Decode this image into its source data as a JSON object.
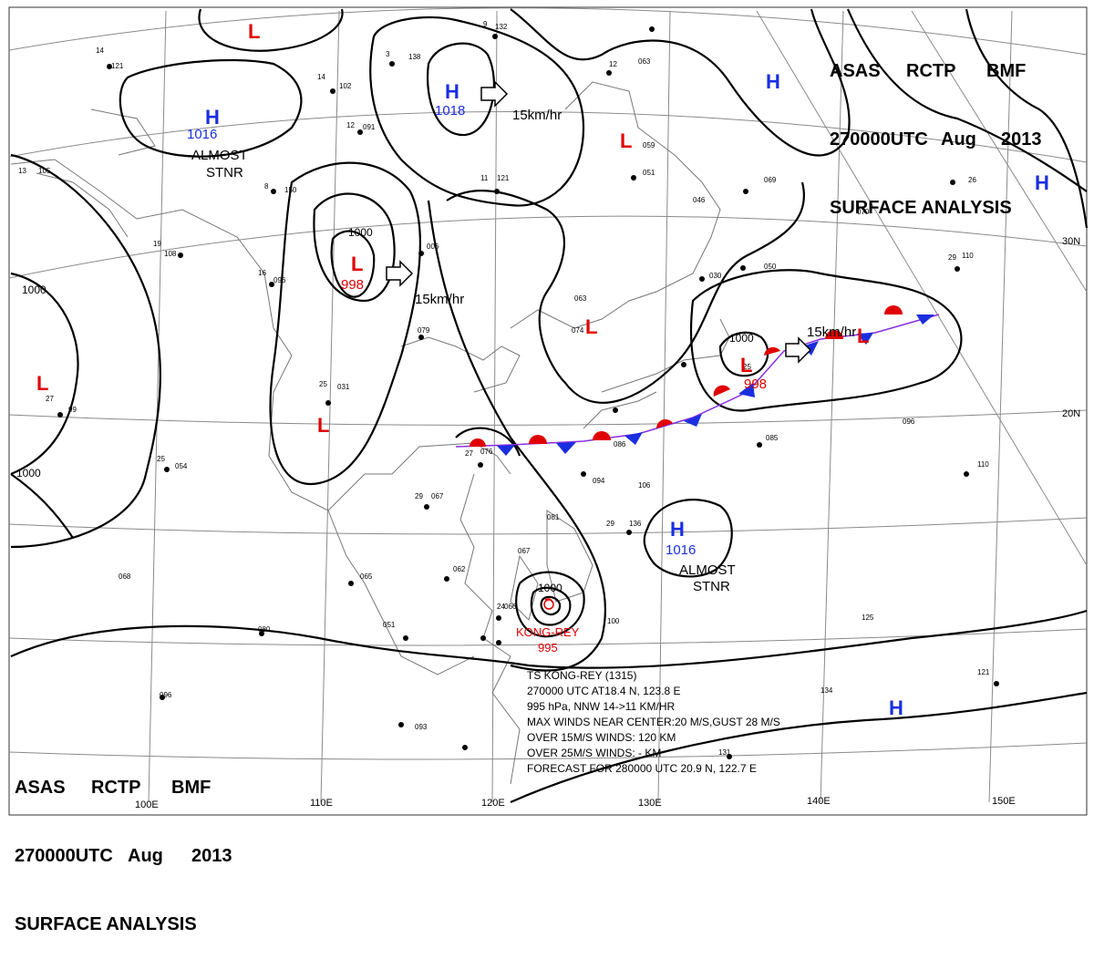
{
  "header_top": {
    "line1": [
      "ASAS",
      "RCTP",
      "BMF"
    ],
    "line2": [
      "270000UTC",
      "Aug",
      "2013"
    ],
    "line3": "SURFACE  ANALYSIS"
  },
  "header_bottom": {
    "line1": [
      "ASAS",
      "RCTP",
      "BMF"
    ],
    "line2": [
      "270000UTC",
      "Aug",
      "2013"
    ],
    "line3": "SURFACE  ANALYSIS"
  },
  "longitude_labels": [
    "100E",
    "110E",
    "120E",
    "130E",
    "140E",
    "150E"
  ],
  "latitude_labels": [
    "30N",
    "20N"
  ],
  "pressure_centers": [
    {
      "type": "H",
      "value": "1016",
      "note": "ALMOST STNR"
    },
    {
      "type": "H",
      "value": "1018",
      "note": ""
    },
    {
      "type": "L",
      "value": "998",
      "note": ""
    },
    {
      "type": "L",
      "value": "998",
      "note": ""
    },
    {
      "type": "H",
      "value": "1016",
      "note": "ALMOST STNR"
    },
    {
      "type": "L",
      "value": "",
      "note": ""
    },
    {
      "type": "L",
      "value": "",
      "note": ""
    },
    {
      "type": "L",
      "value": "",
      "note": ""
    },
    {
      "type": "L",
      "value": "",
      "note": ""
    },
    {
      "type": "L",
      "value": "",
      "note": ""
    },
    {
      "type": "H",
      "value": "",
      "note": ""
    },
    {
      "type": "H",
      "value": "",
      "note": ""
    },
    {
      "type": "H",
      "value": "",
      "note": ""
    }
  ],
  "isobar_labels": [
    "1000",
    "1000",
    "1000",
    "1000",
    "1000"
  ],
  "motion_labels": [
    "15km/hr",
    "15km/hr",
    "15km/hr"
  ],
  "typhoon": {
    "name": "KONG-REY",
    "pressure": "995",
    "info_lines": [
      "TS  KONG-REY  (1315)",
      "270000 UTC  AT18.4 N, 123.8 E",
      "995 hPa, NNW  14->11 KM/HR",
      "MAX WINDS NEAR CENTER:20 M/S,GUST 28 M/S",
      "OVER 15M/S WINDS: 120 KM",
      "OVER 25M/S WINDS: - KM",
      "FORECAST FOR 280000 UTC 20.9 N, 122.7 E"
    ]
  },
  "colors": {
    "high": "#1a2ee0",
    "low": "#e00000",
    "isobar": "#000000",
    "grid": "#8a8a8a",
    "coast": "#777777",
    "warm_front": "#e00000",
    "cold_front": "#1a2ee0"
  }
}
